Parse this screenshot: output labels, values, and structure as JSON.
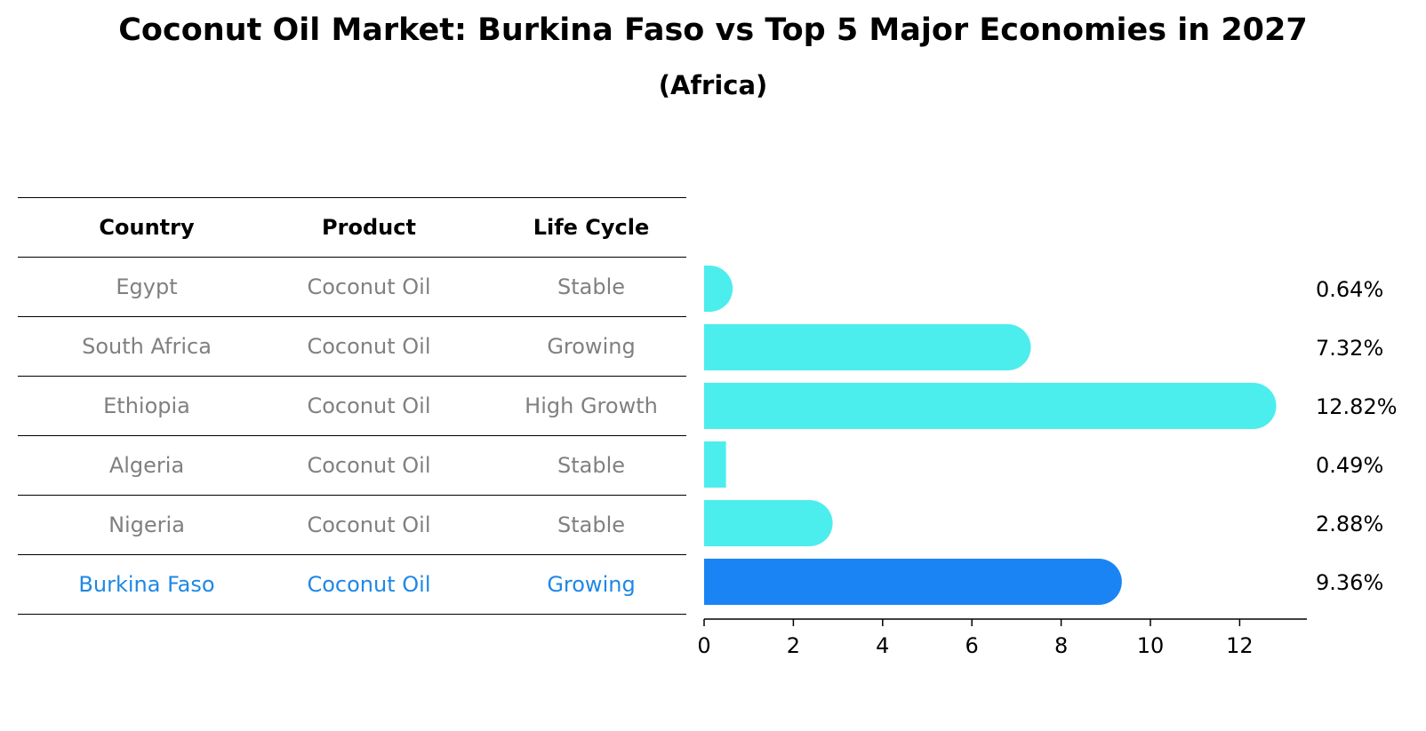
{
  "title": "Coconut Oil Market: Burkina Faso vs Top 5 Major Economies in 2027",
  "subtitle": "(Africa)",
  "table": {
    "headers": [
      "Country",
      "Product",
      "Life Cycle"
    ],
    "rows": [
      [
        "Egypt",
        "Coconut Oil",
        "Stable"
      ],
      [
        "South Africa",
        "Coconut Oil",
        "Growing"
      ],
      [
        "Ethiopia",
        "Coconut Oil",
        "High Growth"
      ],
      [
        "Algeria",
        "Coconut Oil",
        "Stable"
      ],
      [
        "Nigeria",
        "Coconut Oil",
        "Stable"
      ],
      [
        "Burkina Faso",
        "Coconut Oil",
        "Growing"
      ]
    ],
    "highlight_color": "#1e88e5",
    "text_color": "#808080"
  },
  "chart_data": {
    "type": "bar",
    "orientation": "horizontal",
    "categories": [
      "Egypt",
      "South Africa",
      "Ethiopia",
      "Algeria",
      "Nigeria",
      "Burkina Faso"
    ],
    "values": [
      0.64,
      7.32,
      12.82,
      0.49,
      2.88,
      9.36
    ],
    "value_labels": [
      "0.64%",
      "7.32%",
      "12.82%",
      "0.49%",
      "2.88%",
      "9.36%"
    ],
    "highlight": "Burkina Faso",
    "xlim": [
      0,
      13.5
    ],
    "xticks": [
      0,
      2,
      4,
      6,
      8,
      10,
      12
    ],
    "grid": false,
    "colors": {
      "bar": "#4ceded",
      "highlight": "#1a84f5"
    }
  }
}
